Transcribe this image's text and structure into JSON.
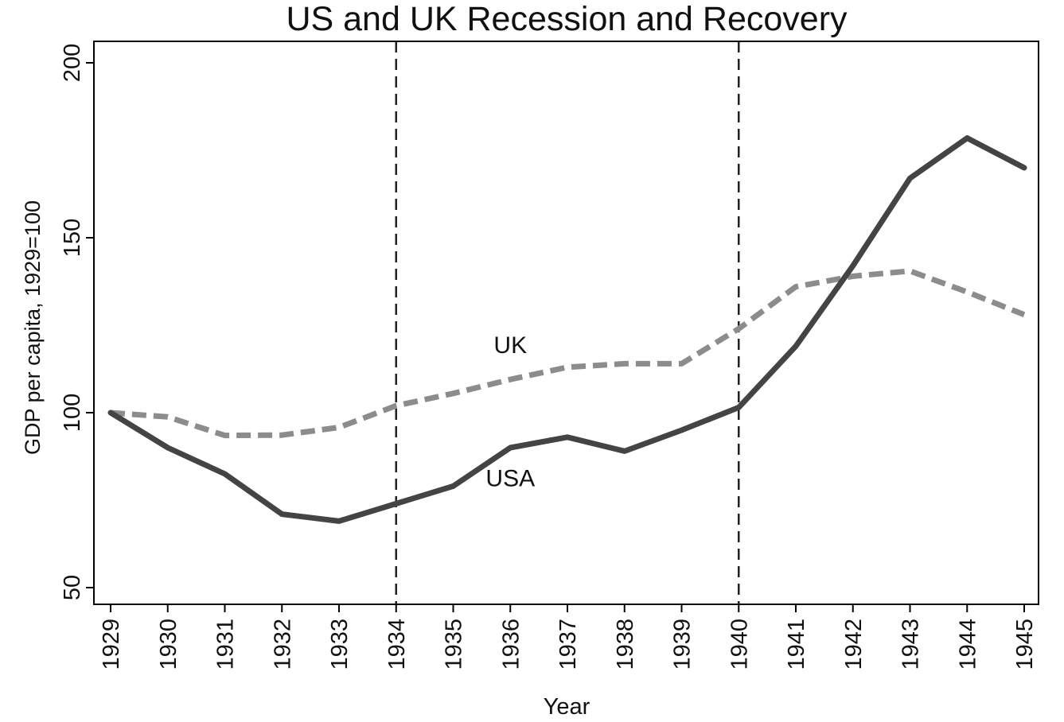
{
  "chart_data": {
    "type": "line",
    "title": "US and UK Recession and Recovery",
    "xlabel": "Year",
    "ylabel": "GDP per capita, 1929=100",
    "x": [
      1929,
      1930,
      1931,
      1932,
      1933,
      1934,
      1935,
      1936,
      1937,
      1938,
      1939,
      1940,
      1941,
      1942,
      1943,
      1944,
      1945
    ],
    "xlim": [
      1929,
      1945
    ],
    "ylim": [
      50,
      200
    ],
    "yticks": [
      50,
      100,
      150,
      200
    ],
    "grid": false,
    "legend": "none",
    "vertical_lines": [
      1934,
      1940
    ],
    "series": [
      {
        "name": "UK",
        "style": "dashed",
        "color": "#8c8c8c",
        "values": [
          100,
          98.8,
          93.5,
          93.6,
          95.8,
          102,
          105.5,
          109.5,
          113,
          114,
          114,
          124,
          136,
          139,
          140.5,
          134.5,
          128
        ]
      },
      {
        "name": "USA",
        "style": "solid",
        "color": "#444444",
        "values": [
          100,
          90,
          82.5,
          71,
          69,
          74,
          79,
          90,
          93,
          89,
          95,
          101.5,
          119,
          142,
          167,
          178.5,
          170
        ]
      }
    ],
    "annotations": [
      {
        "text": "UK",
        "x": 1936,
        "y": 117
      },
      {
        "text": "USA",
        "x": 1936,
        "y": 79
      }
    ]
  }
}
